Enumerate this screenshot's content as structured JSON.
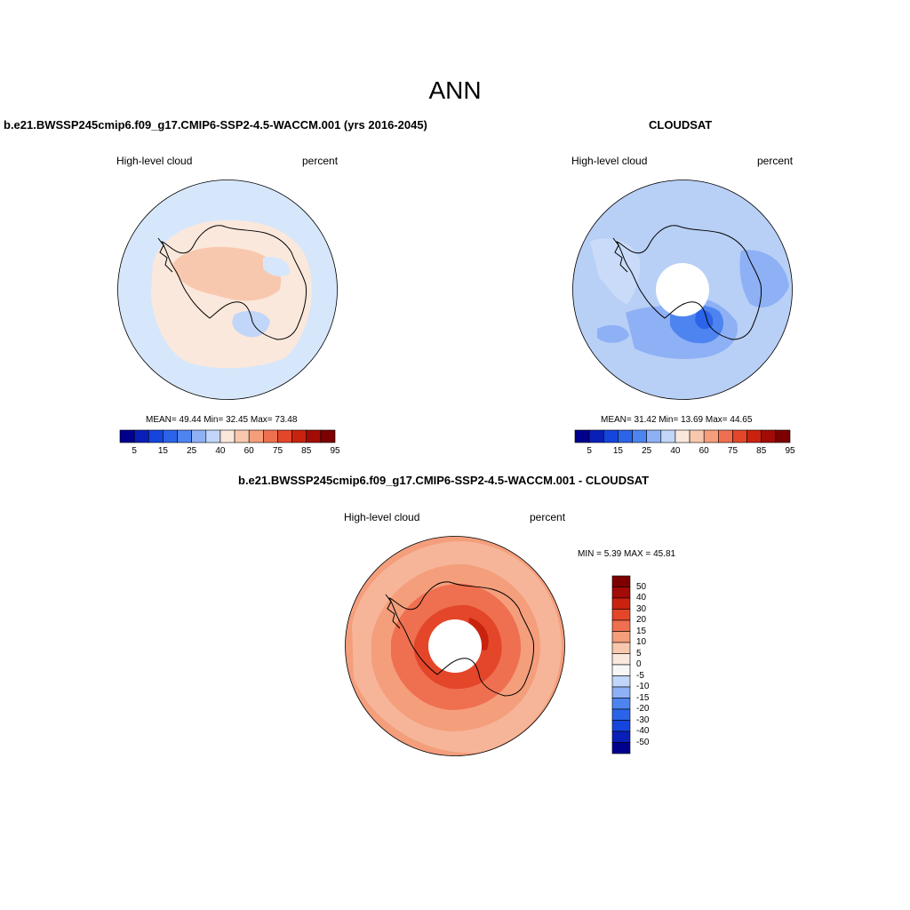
{
  "page_title": "ANN",
  "colors": {
    "seq_palette": [
      "#00008c",
      "#0a1fb8",
      "#1545dc",
      "#2b64e8",
      "#4d84f0",
      "#8eb0f5",
      "#c1d6f8",
      "#fbe8dc",
      "#f8c8ae",
      "#f49e7c",
      "#ef7050",
      "#e4462a",
      "#c9230f",
      "#a30b06",
      "#7d0000"
    ],
    "diff_palette": [
      "#00008c",
      "#0a1fb8",
      "#1545dc",
      "#2b64e8",
      "#4d84f0",
      "#8eb0f5",
      "#c1d6f8",
      "#f7f7f7",
      "#fbe8dc",
      "#f8c8ae",
      "#f49e7c",
      "#ef7050",
      "#e4462a",
      "#c9230f",
      "#a30b06",
      "#7d0000"
    ],
    "coastline": "#000000"
  },
  "panels": [
    {
      "id": "model",
      "title": "b.e21.BWSSP245cmip6.f09_g17.CMIP6-SSP2-4.5-WACCM.001 (yrs 2016-2045)",
      "left_label": "High-level cloud",
      "right_label": "percent",
      "stats": {
        "mean_label": "MEAN=",
        "mean": "49.44",
        "min_label": "Min=",
        "min": "32.45",
        "max_label": "Max=",
        "max": "73.48"
      },
      "colorbar_ticks": [
        "5",
        "15",
        "25",
        "40",
        "60",
        "75",
        "85",
        "95"
      ]
    },
    {
      "id": "obs",
      "title": "CLOUDSAT",
      "left_label": "High-level cloud",
      "right_label": "percent",
      "stats": {
        "mean_label": "MEAN=",
        "mean": "31.42",
        "min_label": "Min=",
        "min": "13.69",
        "max_label": "Max=",
        "max": "44.65"
      },
      "colorbar_ticks": [
        "5",
        "15",
        "25",
        "40",
        "60",
        "75",
        "85",
        "95"
      ]
    },
    {
      "id": "diff",
      "title": "b.e21.BWSSP245cmip6.f09_g17.CMIP6-SSP2-4.5-WACCM.001 - CLOUDSAT",
      "left_label": "High-level cloud",
      "right_label": "percent",
      "stats": {
        "min_label": "MIN =",
        "min": "5.39",
        "max_label": "MAX =",
        "max": "45.81"
      },
      "colorbar_ticks": [
        "50",
        "40",
        "30",
        "20",
        "15",
        "10",
        "5",
        "0",
        "-5",
        "-10",
        "-15",
        "-20",
        "-30",
        "-40",
        "-50"
      ]
    }
  ]
}
